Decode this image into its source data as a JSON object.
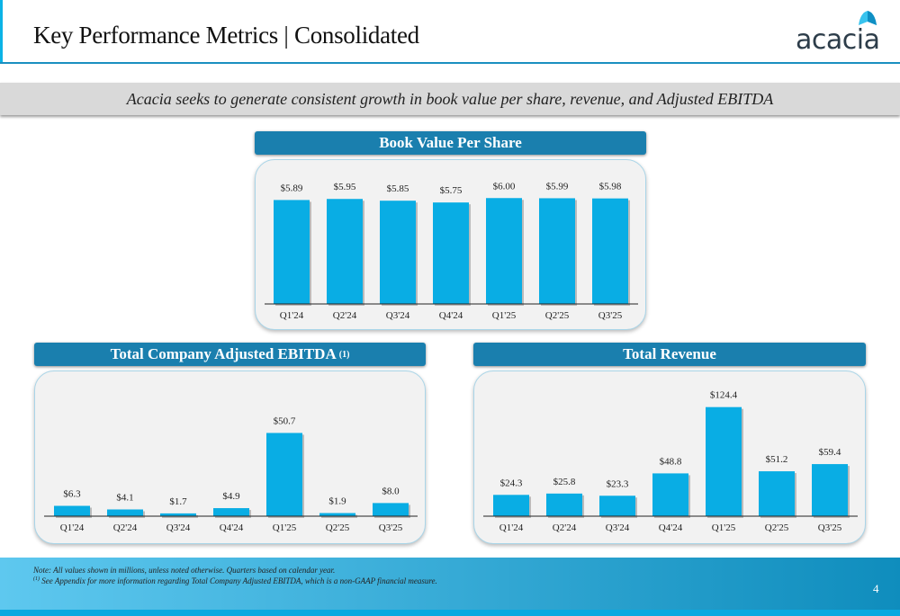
{
  "header": {
    "title": "Key Performance Metrics | Consolidated",
    "logo_text": "acacia"
  },
  "tagline": "Acacia seeks to generate consistent growth in book value per share, revenue, and Adjusted EBITDA",
  "colors": {
    "bar": "#09ade4",
    "title_bar": "#1a7fae",
    "accent": "#0bb3e6"
  },
  "chart_data": [
    {
      "type": "bar",
      "title": "Book Value Per Share",
      "categories": [
        "Q1'24",
        "Q2'24",
        "Q3'24",
        "Q4'24",
        "Q1'25",
        "Q2'25",
        "Q3'25"
      ],
      "values": [
        5.89,
        5.95,
        5.85,
        5.75,
        6.0,
        5.99,
        5.98
      ],
      "labels": [
        "$5.89",
        "$5.95",
        "$5.85",
        "$5.75",
        "$6.00",
        "$5.99",
        "$5.98"
      ],
      "ylim": [
        0,
        8
      ],
      "grid": false
    },
    {
      "type": "bar",
      "title": "Total Company Adjusted EBITDA",
      "title_sup": "(1)",
      "categories": [
        "Q1'24",
        "Q2'24",
        "Q3'24",
        "Q4'24",
        "Q1'25",
        "Q2'25",
        "Q3'25"
      ],
      "values": [
        6.3,
        4.1,
        1.7,
        4.9,
        50.7,
        1.9,
        8.0
      ],
      "labels": [
        "$6.3",
        "$4.1",
        "$1.7",
        "$4.9",
        "$50.7",
        "$1.9",
        "$8.0"
      ],
      "ylim": [
        0,
        86
      ],
      "grid": false
    },
    {
      "type": "bar",
      "title": "Total Revenue",
      "categories": [
        "Q1'24",
        "Q2'24",
        "Q3'24",
        "Q4'24",
        "Q1'25",
        "Q2'25",
        "Q3'25"
      ],
      "values": [
        24.3,
        25.8,
        23.3,
        48.8,
        124.4,
        51.2,
        59.4
      ],
      "labels": [
        "$24.3",
        "$25.8",
        "$23.3",
        "$48.8",
        "$124.4",
        "$51.2",
        "$59.4"
      ],
      "ylim": [
        0,
        161
      ],
      "grid": false
    }
  ],
  "footer": {
    "note": "Note: All values shown in millions, unless noted otherwise. Quarters based on calendar year.",
    "footnote_sup": "(1)",
    "footnote": "See Appendix for more information regarding Total Company Adjusted EBITDA, which is a non-GAAP financial measure.",
    "page": "4"
  }
}
